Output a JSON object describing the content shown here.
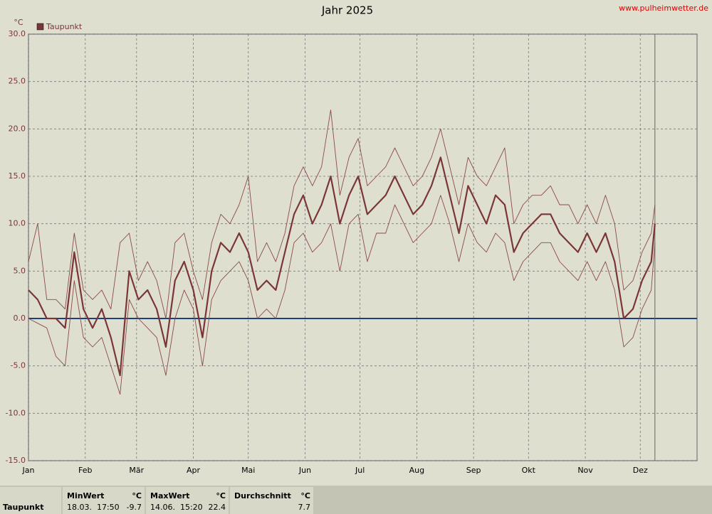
{
  "chart_data": {
    "type": "line",
    "title": "Jahr 2025",
    "source": "www.pulheimwetter.de",
    "y_unit": "°C",
    "x": [
      1,
      6,
      11,
      16,
      21,
      26,
      31,
      36,
      41,
      46,
      51,
      56,
      61,
      66,
      71,
      76,
      81,
      86,
      91,
      96,
      101,
      106,
      111,
      116,
      121,
      126,
      131,
      136,
      141,
      146,
      151,
      156,
      161,
      166,
      171,
      176,
      181,
      186,
      191,
      196,
      201,
      206,
      211,
      216,
      221,
      226,
      231,
      236,
      241,
      246,
      251,
      256,
      261,
      266,
      271,
      276,
      281,
      286,
      291,
      296,
      301,
      306,
      311,
      316,
      321,
      326,
      331,
      336,
      341,
      343
    ],
    "series": [
      {
        "name": "Taupunkt",
        "color": "#7a3636",
        "width": 2.2,
        "values": [
          3,
          2,
          0,
          0,
          -1,
          7,
          1,
          -1,
          1,
          -2,
          -6,
          5,
          2,
          3,
          1,
          -3,
          4,
          6,
          3,
          -2,
          5,
          8,
          7,
          9,
          7,
          3,
          4,
          3,
          7,
          11,
          13,
          10,
          12,
          15,
          10,
          13,
          15,
          11,
          12,
          13,
          15,
          13,
          11,
          12,
          14,
          17,
          13,
          9,
          14,
          12,
          10,
          13,
          12,
          7,
          9,
          10,
          11,
          11,
          9,
          8,
          7,
          9,
          7,
          9,
          6,
          0,
          1,
          4,
          6,
          10
        ]
      },
      {
        "color": "#8a4a4a",
        "width": 0.9,
        "values": [
          0,
          -0.5,
          -1,
          -4,
          -5,
          4,
          -2,
          -3,
          -2,
          -5,
          -8,
          2,
          0,
          -1,
          -2,
          -6,
          0,
          3,
          1,
          -5,
          2,
          4,
          5,
          6,
          4,
          0,
          1,
          0,
          3,
          8,
          9,
          7,
          8,
          10,
          5,
          10,
          11,
          6,
          9,
          9,
          12,
          10,
          8,
          9,
          10,
          13,
          10,
          6,
          10,
          8,
          7,
          9,
          8,
          4,
          6,
          7,
          8,
          8,
          6,
          5,
          4,
          6,
          4,
          6,
          3,
          -3,
          -2,
          1,
          3,
          8
        ]
      },
      {
        "color": "#8a4a4a",
        "width": 0.9,
        "values": [
          6,
          10,
          2,
          2,
          1,
          9,
          3,
          2,
          3,
          1,
          8,
          9,
          4,
          6,
          4,
          0,
          8,
          9,
          5,
          2,
          8,
          11,
          10,
          12,
          15,
          6,
          8,
          6,
          9,
          14,
          16,
          14,
          16,
          22,
          13,
          17,
          19,
          14,
          15,
          16,
          18,
          16,
          14,
          15,
          17,
          20,
          16,
          12,
          17,
          15,
          14,
          16,
          18,
          10,
          12,
          13,
          13,
          14,
          12,
          12,
          10,
          12,
          10,
          13,
          10,
          3,
          4,
          7,
          9,
          12
        ]
      }
    ],
    "xlim": [
      1,
      366
    ],
    "ylim": [
      -15,
      30
    ],
    "xticks": [
      {
        "value": 1,
        "label": "Jan"
      },
      {
        "value": 32,
        "label": "Feb"
      },
      {
        "value": 60,
        "label": "Mär"
      },
      {
        "value": 91,
        "label": "Apr"
      },
      {
        "value": 121,
        "label": "Mai"
      },
      {
        "value": 152,
        "label": "Jun"
      },
      {
        "value": 182,
        "label": "Jul"
      },
      {
        "value": 213,
        "label": "Aug"
      },
      {
        "value": 244,
        "label": "Sep"
      },
      {
        "value": 274,
        "label": "Okt"
      },
      {
        "value": 305,
        "label": "Nov"
      },
      {
        "value": 335,
        "label": "Dez"
      }
    ],
    "yticks": [
      {
        "value": -15,
        "label": "-15.0"
      },
      {
        "value": -10,
        "label": "-10.0"
      },
      {
        "value": -5,
        "label": "-5.0"
      },
      {
        "value": 0,
        "label": "0.0"
      },
      {
        "value": 5,
        "label": "5.0"
      },
      {
        "value": 10,
        "label": "10.0"
      },
      {
        "value": 15,
        "label": "15.0"
      },
      {
        "value": 20,
        "label": "20.0"
      },
      {
        "value": 25,
        "label": "25.0"
      },
      {
        "value": 30,
        "label": "30.0"
      }
    ],
    "grid": true,
    "zero_line_color": "#1c3f7a",
    "current_day": 343
  },
  "stats": {
    "row_label": "Taupunkt",
    "columns": [
      {
        "title": "MinWert",
        "unit": "°C",
        "time": "18.03.  17:50",
        "value": -9.7
      },
      {
        "title": "MaxWert",
        "unit": "°C",
        "time": "14.06.  15:20",
        "value": 22.4
      },
      {
        "title": "Durchschnitt",
        "unit": "°C",
        "value": 7.7
      }
    ]
  }
}
